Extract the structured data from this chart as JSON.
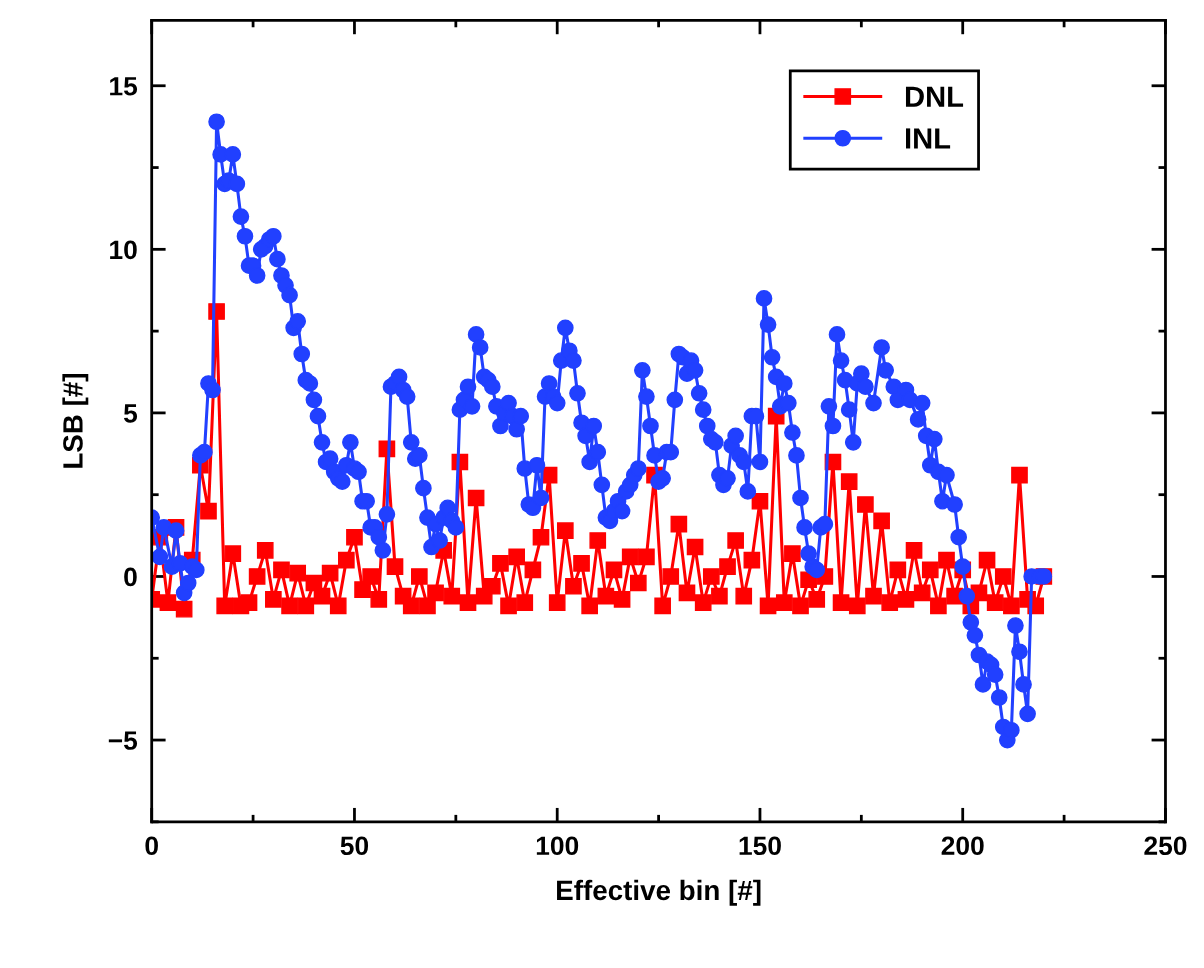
{
  "chart_data": {
    "type": "line",
    "xlabel": "Effective bin [#]",
    "ylabel": "LSB [#]",
    "xlim": [
      0,
      250
    ],
    "ylim": [
      -7.5,
      17
    ],
    "xticks": [
      0,
      50,
      100,
      150,
      200,
      250
    ],
    "yticks": [
      {
        "value": -5,
        "label": "−5"
      },
      0,
      5,
      10,
      15
    ],
    "grid": false,
    "legend": "top right",
    "line_style": "solid",
    "series": [
      {
        "name": "DNL",
        "color": "#ff0000",
        "marker": "square",
        "x": [
          0,
          2,
          4,
          6,
          8,
          10,
          12,
          14,
          16,
          18,
          20,
          22,
          24,
          26,
          28,
          30,
          32,
          34,
          36,
          38,
          40,
          42,
          44,
          46,
          48,
          50,
          52,
          54,
          56,
          58,
          60,
          62,
          64,
          66,
          68,
          70,
          72,
          74,
          76,
          78,
          80,
          82,
          84,
          86,
          88,
          90,
          92,
          94,
          96,
          98,
          100,
          102,
          104,
          106,
          108,
          110,
          112,
          114,
          116,
          118,
          120,
          122,
          124,
          126,
          128,
          130,
          132,
          134,
          136,
          138,
          140,
          142,
          144,
          146,
          148,
          150,
          152,
          154,
          156,
          158,
          160,
          162,
          164,
          166,
          168,
          170,
          172,
          174,
          176,
          178,
          180,
          182,
          184,
          186,
          188,
          190,
          192,
          194,
          196,
          198,
          200,
          202,
          204,
          206,
          208,
          210,
          212,
          214,
          216,
          218,
          220
        ],
        "values": [
          -0.7,
          1.2,
          -0.8,
          1.5,
          -1.0,
          0.5,
          3.4,
          2.0,
          8.1,
          -0.9,
          0.7,
          -0.9,
          -0.8,
          0.0,
          0.8,
          -0.7,
          0.2,
          -0.9,
          0.1,
          -0.9,
          -0.2,
          -0.6,
          0.1,
          -0.9,
          0.5,
          1.2,
          -0.4,
          0.0,
          -0.7,
          3.9,
          0.3,
          -0.6,
          -0.9,
          0.0,
          -0.9,
          -0.5,
          0.8,
          -0.6,
          3.5,
          -0.8,
          2.4,
          -0.6,
          -0.3,
          0.4,
          -0.9,
          0.6,
          -0.8,
          0.2,
          1.2,
          3.1,
          -0.8,
          1.4,
          -0.3,
          0.4,
          -0.9,
          1.1,
          -0.6,
          0.2,
          -0.7,
          0.6,
          -0.2,
          0.6,
          3.1,
          -0.9,
          0.0,
          1.6,
          -0.5,
          0.9,
          -0.8,
          0.0,
          -0.6,
          0.3,
          1.1,
          -0.6,
          0.5,
          2.3,
          -0.9,
          4.9,
          -0.8,
          0.7,
          -0.9,
          -0.1,
          -0.7,
          0.0,
          3.5,
          -0.8,
          2.9,
          -0.9,
          2.2,
          -0.6,
          1.7,
          -0.8,
          0.2,
          -0.7,
          0.8,
          -0.5,
          0.2,
          -0.9,
          0.5,
          -0.6,
          0.2,
          -0.9,
          -0.5,
          0.5,
          -0.8,
          0.0,
          -0.9,
          3.1,
          -0.7,
          -0.9,
          0.0
        ]
      },
      {
        "name": "INL",
        "color": "#2140ff",
        "marker": "circle",
        "x": [
          0,
          2,
          3,
          5,
          6,
          7,
          8,
          9,
          10,
          11,
          12,
          13,
          14,
          15,
          16,
          17,
          18,
          19,
          20,
          21,
          22,
          23,
          24,
          25,
          26,
          27,
          28,
          29,
          30,
          31,
          32,
          33,
          34,
          35,
          36,
          37,
          38,
          39,
          40,
          41,
          42,
          43,
          44,
          45,
          46,
          47,
          48,
          49,
          50,
          51,
          52,
          53,
          54,
          55,
          56,
          57,
          58,
          59,
          60,
          61,
          62,
          63,
          64,
          65,
          66,
          67,
          68,
          69,
          70,
          71,
          72,
          73,
          74,
          75,
          76,
          77,
          78,
          79,
          80,
          81,
          82,
          83,
          84,
          85,
          86,
          87,
          88,
          89,
          90,
          91,
          92,
          93,
          94,
          95,
          96,
          97,
          98,
          99,
          100,
          101,
          102,
          103,
          104,
          105,
          106,
          107,
          108,
          109,
          110,
          111,
          112,
          113,
          114,
          115,
          116,
          117,
          118,
          119,
          120,
          121,
          122,
          123,
          124,
          125,
          126,
          127,
          128,
          129,
          130,
          131,
          132,
          133,
          134,
          135,
          136,
          137,
          138,
          139,
          140,
          141,
          142,
          143,
          144,
          145,
          146,
          147,
          148,
          149,
          150,
          151,
          152,
          153,
          154,
          155,
          156,
          157,
          158,
          159,
          160,
          161,
          162,
          163,
          164,
          165,
          166,
          167,
          168,
          169,
          170,
          171,
          172,
          173,
          174,
          175,
          176,
          178,
          180,
          181,
          183,
          184,
          186,
          187,
          189,
          190,
          191,
          192,
          193,
          194,
          195,
          196,
          198,
          199,
          200,
          201,
          202,
          203,
          204,
          205,
          206,
          207,
          208,
          209,
          210,
          211,
          212,
          213,
          214,
          215,
          216,
          217,
          219,
          220
        ],
        "values": [
          1.8,
          0.6,
          1.5,
          0.3,
          1.4,
          0.4,
          -0.5,
          -0.2,
          0.3,
          0.2,
          3.7,
          3.8,
          5.9,
          5.7,
          13.9,
          12.9,
          12.0,
          12.1,
          12.9,
          12.0,
          11.0,
          10.4,
          9.5,
          9.5,
          9.2,
          10.0,
          10.1,
          10.3,
          10.4,
          9.7,
          9.2,
          8.9,
          8.6,
          7.6,
          7.8,
          6.8,
          6.0,
          5.9,
          5.4,
          4.9,
          4.1,
          3.5,
          3.6,
          3.2,
          3.0,
          2.9,
          3.4,
          4.1,
          3.3,
          3.2,
          2.3,
          2.3,
          1.5,
          1.5,
          1.2,
          0.8,
          1.9,
          5.8,
          5.9,
          6.1,
          5.7,
          5.5,
          4.1,
          3.6,
          3.7,
          2.7,
          1.8,
          0.9,
          1.6,
          1.1,
          1.8,
          2.1,
          1.7,
          1.5,
          5.1,
          5.4,
          5.8,
          5.2,
          7.4,
          7.0,
          6.1,
          6.0,
          5.8,
          5.2,
          4.6,
          5.0,
          5.3,
          4.9,
          4.5,
          4.9,
          3.3,
          2.2,
          2.1,
          3.4,
          2.4,
          5.5,
          5.9,
          5.5,
          5.3,
          6.6,
          7.6,
          6.9,
          6.6,
          5.6,
          4.7,
          4.3,
          3.5,
          4.6,
          3.8,
          2.8,
          1.8,
          1.7,
          2.0,
          2.3,
          2.0,
          2.6,
          2.8,
          3.1,
          3.3,
          6.3,
          5.5,
          4.6,
          3.7,
          2.9,
          3.0,
          3.8,
          3.8,
          5.4,
          6.8,
          6.7,
          6.2,
          6.6,
          6.3,
          5.6,
          5.1,
          4.6,
          4.2,
          4.1,
          3.1,
          2.8,
          3.0,
          4.0,
          4.3,
          3.7,
          3.5,
          2.6,
          4.9,
          4.9,
          3.5,
          8.5,
          7.7,
          6.7,
          6.1,
          5.2,
          5.9,
          5.3,
          4.4,
          3.7,
          2.4,
          1.5,
          0.7,
          0.3,
          0.2,
          1.5,
          1.6,
          5.2,
          4.6,
          7.4,
          6.6,
          6.0,
          5.1,
          4.1,
          5.9,
          6.2,
          5.8,
          5.3,
          7.0,
          6.3,
          5.8,
          5.4,
          5.7,
          5.4,
          4.8,
          5.3,
          4.3,
          3.4,
          4.2,
          3.2,
          2.3,
          3.1,
          2.2,
          1.2,
          0.3,
          -0.6,
          -1.4,
          -1.8,
          -2.4,
          -3.3,
          -2.6,
          -2.7,
          -3.0,
          -3.7,
          -4.6,
          -5.0,
          -4.7,
          -1.5,
          -2.3,
          -3.3,
          -4.2,
          0.0,
          0.0,
          0.0
        ]
      }
    ]
  }
}
